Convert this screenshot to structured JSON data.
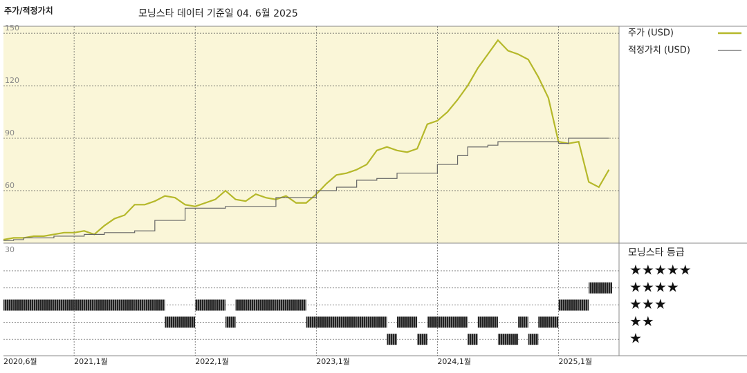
{
  "chart_data": {
    "type": "line",
    "title": "주가/적정가치",
    "subtitle": "모닝스타 데이터 기준일 04. 6월 2025",
    "x": [
      "2020-06",
      "2020-07",
      "2020-08",
      "2020-09",
      "2020-10",
      "2020-11",
      "2020-12",
      "2021-01",
      "2021-02",
      "2021-03",
      "2021-04",
      "2021-05",
      "2021-06",
      "2021-07",
      "2021-08",
      "2021-09",
      "2021-10",
      "2021-11",
      "2021-12",
      "2022-01",
      "2022-02",
      "2022-03",
      "2022-04",
      "2022-05",
      "2022-06",
      "2022-07",
      "2022-08",
      "2022-09",
      "2022-10",
      "2022-11",
      "2022-12",
      "2023-01",
      "2023-02",
      "2023-03",
      "2023-04",
      "2023-05",
      "2023-06",
      "2023-07",
      "2023-08",
      "2023-09",
      "2023-10",
      "2023-11",
      "2023-12",
      "2024-01",
      "2024-02",
      "2024-03",
      "2024-04",
      "2024-05",
      "2024-06",
      "2024-07",
      "2024-08",
      "2024-09",
      "2024-10",
      "2024-11",
      "2024-12",
      "2025-01",
      "2025-02",
      "2025-03",
      "2025-04",
      "2025-05",
      "2025-06"
    ],
    "series": [
      {
        "name": "주가 (USD)",
        "color": "#b5b82a",
        "values": [
          32,
          33,
          33,
          34,
          34,
          35,
          36,
          36,
          37,
          35,
          40,
          44,
          46,
          52,
          52,
          54,
          57,
          56,
          52,
          51,
          53,
          55,
          60,
          55,
          54,
          58,
          56,
          55,
          57,
          53,
          53,
          58,
          64,
          69,
          70,
          72,
          75,
          83,
          85,
          83,
          82,
          84,
          98,
          100,
          105,
          112,
          120,
          130,
          138,
          146,
          140,
          138,
          135,
          125,
          113,
          88,
          87,
          88,
          65,
          62,
          72
        ]
      },
      {
        "name": "적정가치 (USD)",
        "color": "#666666",
        "values": [
          31.5,
          32,
          33,
          33,
          33,
          34,
          34,
          34,
          35,
          35,
          36,
          36,
          36,
          37,
          37,
          43,
          43,
          43,
          50,
          50,
          50,
          50,
          51,
          51,
          51,
          51,
          51,
          56,
          56,
          56,
          56,
          60,
          60,
          62,
          62,
          66,
          66,
          67,
          67,
          70,
          70,
          70,
          70,
          75,
          75,
          80,
          85,
          85,
          86,
          88,
          88,
          88,
          88,
          88,
          88,
          87,
          90,
          90,
          90,
          90,
          90
        ]
      }
    ],
    "xlim": [
      "2020-06",
      "2025-07"
    ],
    "xticks": [
      {
        "value": "2020-06",
        "label": "2020,6월"
      },
      {
        "value": "2021-01",
        "label": "2021,1월"
      },
      {
        "value": "2022-01",
        "label": "2022,1월"
      },
      {
        "value": "2023-01",
        "label": "2023,1월"
      },
      {
        "value": "2024-01",
        "label": "2024,1월"
      },
      {
        "value": "2025-01",
        "label": "2025,1월"
      }
    ],
    "ylim": [
      30,
      154
    ],
    "yticks": [
      150,
      120,
      90,
      60,
      30
    ],
    "grid": true,
    "ratings": {
      "title": "모닝스타 등급",
      "levels": [
        {
          "value": 5,
          "label": "★★★★★"
        },
        {
          "value": 4,
          "label": "★★★★"
        },
        {
          "value": 3,
          "label": "★★★"
        },
        {
          "value": 2,
          "label": "★★"
        },
        {
          "value": 1,
          "label": "★"
        }
      ],
      "values": [
        3,
        3,
        3,
        3,
        3,
        3,
        3,
        3,
        3,
        3,
        3,
        3,
        3,
        3,
        3,
        3,
        2,
        2,
        2,
        3,
        3,
        3,
        2,
        3,
        3,
        3,
        3,
        3,
        3,
        3,
        2,
        2,
        2,
        2,
        2,
        2,
        2,
        2,
        1,
        2,
        2,
        1,
        2,
        2,
        2,
        2,
        1,
        2,
        2,
        1,
        1,
        2,
        1,
        2,
        2,
        3,
        3,
        3,
        4,
        4,
        4
      ]
    }
  }
}
